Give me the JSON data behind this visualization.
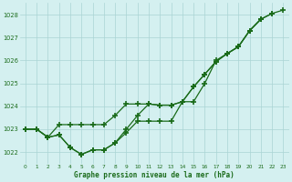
{
  "x": [
    0,
    1,
    2,
    3,
    4,
    5,
    6,
    7,
    8,
    9,
    10,
    11,
    12,
    13,
    14,
    15,
    16,
    17,
    18,
    19,
    20,
    21,
    22,
    23
  ],
  "series": [
    {
      "y": [
        1023.0,
        1023.0,
        1022.65,
        1022.75,
        1022.2,
        1021.9,
        1022.1,
        1022.1,
        1022.4,
        1022.85,
        1023.35,
        1023.35,
        1023.35,
        1023.35,
        1024.2,
        1024.2,
        1025.0,
        1026.0,
        1026.3,
        1026.6,
        1027.3,
        1027.8,
        null,
        null
      ]
    },
    {
      "y": [
        1023.0,
        1023.0,
        1022.65,
        1022.75,
        1022.2,
        1021.9,
        1022.1,
        1022.1,
        1022.4,
        1023.0,
        1023.6,
        1024.1,
        1024.05,
        1024.05,
        1024.2,
        1024.85,
        1025.4,
        1025.95,
        1026.3,
        1026.6,
        1027.3,
        1027.8,
        1028.05,
        null
      ]
    },
    {
      "y": [
        1023.0,
        1023.0,
        1022.65,
        1023.2,
        1023.2,
        1023.2,
        1023.2,
        1023.2,
        1023.6,
        1024.1,
        1024.1,
        1024.1,
        1024.05,
        1024.05,
        1024.2,
        1024.85,
        1025.4,
        1025.95,
        1026.3,
        1026.6,
        1027.3,
        1027.8,
        1028.05,
        1028.2
      ]
    }
  ],
  "line_color": "#1a6b1a",
  "bg_color": "#d4f0f0",
  "grid_color": "#aad4d4",
  "ylim": [
    1021.5,
    1028.5
  ],
  "xlim": [
    -0.5,
    23.5
  ],
  "yticks": [
    1022,
    1023,
    1024,
    1025,
    1026,
    1027,
    1028
  ],
  "xticks": [
    0,
    1,
    2,
    3,
    4,
    5,
    6,
    7,
    8,
    9,
    10,
    11,
    12,
    13,
    14,
    15,
    16,
    17,
    18,
    19,
    20,
    21,
    22,
    23
  ],
  "xlabel": "Graphe pression niveau de la mer (hPa)",
  "marker": "+",
  "markersize": 4,
  "markeredgewidth": 1.2,
  "linewidth": 0.9
}
